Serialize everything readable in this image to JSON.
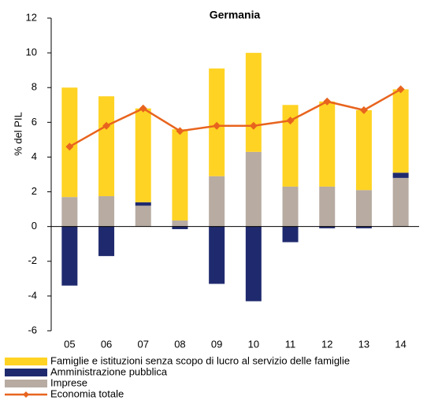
{
  "chart_data": {
    "type": "bar",
    "stacked": true,
    "title": "Germania",
    "y_label": "% del PIL",
    "categories": [
      "05",
      "06",
      "07",
      "08",
      "09",
      "10",
      "11",
      "12",
      "13",
      "14"
    ],
    "series": [
      {
        "name": "Imprese",
        "color": "#b7aba2",
        "values": [
          1.7,
          1.75,
          1.2,
          0.35,
          2.9,
          4.3,
          2.3,
          2.3,
          2.1,
          2.8
        ]
      },
      {
        "name": "Amministrazione pubblica",
        "color": "#1f2a6e",
        "values": [
          -3.4,
          -1.7,
          0.2,
          -0.15,
          -3.3,
          -4.3,
          -0.9,
          -0.1,
          -0.1,
          0.3
        ]
      },
      {
        "name": "Famiglie e istituzioni senza scopo di lucro al servizio delle famiglie",
        "color": "#ffd323",
        "values": [
          6.3,
          5.75,
          5.4,
          5.25,
          6.2,
          5.7,
          4.7,
          4.9,
          4.6,
          4.8
        ]
      },
      {
        "name": "Economia totale",
        "type": "line",
        "color": "#e8641e",
        "values": [
          4.6,
          5.8,
          6.8,
          5.5,
          5.8,
          5.8,
          6.1,
          7.2,
          6.7,
          7.9
        ]
      }
    ],
    "legend_order": [
      2,
      1,
      0,
      3
    ],
    "ylim": [
      -6,
      12
    ],
    "yticks": [
      -6,
      -4,
      -2,
      0,
      2,
      4,
      6,
      8,
      10,
      12
    ],
    "grid": false
  }
}
